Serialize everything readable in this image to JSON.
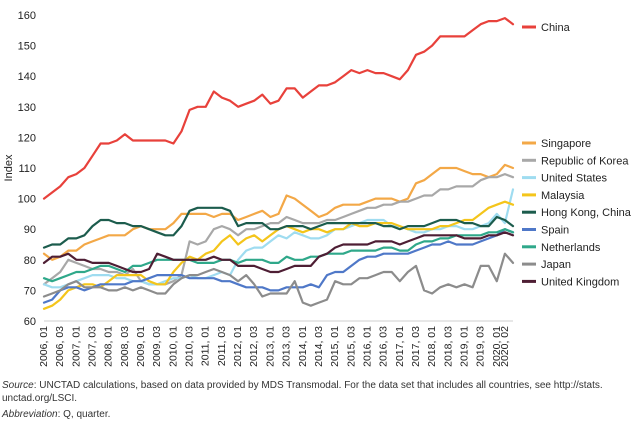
{
  "chart_data": {
    "type": "line",
    "ylabel": "Index",
    "ylim": [
      60,
      160
    ],
    "yticks": [
      60,
      70,
      80,
      90,
      100,
      110,
      120,
      130,
      140,
      150,
      160
    ],
    "grid": false,
    "legend_position": "right",
    "x": [
      "2006, Q1",
      "2006, Q2",
      "2006, Q3",
      "2006, Q4",
      "2007, Q1",
      "2007, Q2",
      "2007, Q3",
      "2007, Q4",
      "2008, Q1",
      "2008, Q2",
      "2008, Q3",
      "2008, Q4",
      "2009, Q1",
      "2009, Q2",
      "2009, Q3",
      "2009, Q4",
      "2010, Q1",
      "2010, Q2",
      "2010, Q3",
      "2010, Q4",
      "2011, Q1",
      "2011, Q2",
      "2011, Q3",
      "2011, Q4",
      "2012, Q1",
      "2012, Q2",
      "2012, Q3",
      "2012, Q4",
      "2013, Q1",
      "2013, Q2",
      "2013, Q3",
      "2013, Q4",
      "2014, Q1",
      "2014, Q2",
      "2014, Q3",
      "2014, Q4",
      "2015, Q1",
      "2015, Q2",
      "2015, Q3",
      "2015, Q4",
      "2016, Q1",
      "2016, Q2",
      "2016, Q3",
      "2016, Q4",
      "2017, Q1",
      "2017, Q2",
      "2017, Q3",
      "2017, Q4",
      "2018, Q1",
      "2018, Q2",
      "2018, Q3",
      "2018, Q4",
      "2019, Q1",
      "2019, Q2",
      "2019, Q3",
      "2019, Q4",
      "2020, Q1",
      "2020, Q2",
      "2020, Q3"
    ],
    "xtick_labels": [
      "2006, Q1",
      "2006, Q3",
      "2007, Q1",
      "2007, Q3",
      "2008, Q1",
      "2008, Q3",
      "2009, Q1",
      "2009, Q3",
      "2010, Q1",
      "2010, Q3",
      "2011, Q1",
      "2011, Q3",
      "2012, Q1",
      "2012, Q3",
      "2013, Q1",
      "2013, Q3",
      "2014, Q1",
      "2014, Q3",
      "2015, Q1",
      "2015, Q3",
      "2016, Q1",
      "2016, Q3",
      "2017, Q1",
      "2017, Q3",
      "2018, Q1",
      "2018, Q3",
      "2019, Q1",
      "2019, Q3",
      "2020, Q1",
      "2020, Q2"
    ],
    "series": [
      {
        "name": "China",
        "color": "#e8413b",
        "values": [
          100,
          102,
          104,
          107,
          108,
          110,
          114,
          118,
          118,
          119,
          121,
          119,
          119,
          119,
          119,
          119,
          118,
          122,
          129,
          130,
          130,
          135,
          133,
          132,
          130,
          131,
          132,
          134,
          131,
          132,
          136,
          136,
          133,
          135,
          137,
          137,
          138,
          140,
          142,
          141,
          142,
          141,
          141,
          140,
          139,
          142,
          147,
          148,
          150,
          153,
          153,
          153,
          153,
          155,
          157,
          158,
          158,
          159,
          157
        ]
      },
      {
        "name": "Singapore",
        "color": "#f3a847",
        "values": [
          82,
          80,
          81,
          83,
          83,
          85,
          86,
          87,
          88,
          88,
          88,
          90,
          91,
          90,
          90,
          90,
          92,
          95,
          95,
          95,
          95,
          94,
          95,
          95,
          93,
          94,
          95,
          96,
          94,
          95,
          101,
          100,
          98,
          96,
          94,
          95,
          97,
          98,
          98,
          98,
          99,
          100,
          100,
          100,
          99,
          100,
          105,
          106,
          108,
          110,
          110,
          110,
          109,
          108,
          108,
          107,
          108,
          111,
          110
        ]
      },
      {
        "name": "Republic of Korea",
        "color": "#a8a8a8",
        "values": [
          72,
          74,
          76,
          80,
          79,
          78,
          77,
          77,
          76,
          76,
          75,
          77,
          73,
          72,
          72,
          72,
          73,
          75,
          86,
          85,
          86,
          90,
          91,
          90,
          88,
          90,
          90,
          91,
          92,
          92,
          94,
          93,
          92,
          92,
          92,
          93,
          93,
          94,
          95,
          96,
          97,
          97,
          98,
          98,
          99,
          99,
          100,
          101,
          101,
          103,
          103,
          104,
          104,
          104,
          106,
          107,
          107,
          108,
          107
        ]
      },
      {
        "name": "United States",
        "color": "#9fdcf0",
        "values": [
          72,
          71,
          71,
          72,
          73,
          74,
          75,
          75,
          75,
          74,
          74,
          73,
          73,
          72,
          72,
          73,
          74,
          74,
          75,
          74,
          74,
          75,
          76,
          75,
          80,
          83,
          84,
          84,
          86,
          88,
          87,
          89,
          88,
          87,
          87,
          88,
          90,
          90,
          91,
          92,
          93,
          93,
          93,
          91,
          91,
          90,
          89,
          89,
          90,
          90,
          91,
          91,
          90,
          90,
          91,
          92,
          95,
          92,
          103
        ]
      },
      {
        "name": "Malaysia",
        "color": "#f4c51b",
        "values": [
          64,
          65,
          67,
          70,
          71,
          72,
          72,
          71,
          73,
          75,
          75,
          75,
          75,
          73,
          72,
          72,
          76,
          79,
          81,
          80,
          82,
          83,
          86,
          88,
          85,
          87,
          88,
          86,
          88,
          90,
          91,
          90,
          89,
          90,
          90,
          89,
          90,
          90,
          92,
          91,
          91,
          92,
          92,
          92,
          91,
          90,
          90,
          90,
          90,
          91,
          91,
          92,
          93,
          93,
          95,
          97,
          98,
          99,
          98
        ]
      },
      {
        "name": "Hong Kong, China",
        "color": "#1c5c4d",
        "values": [
          84,
          85,
          85,
          87,
          87,
          88,
          91,
          93,
          93,
          92,
          92,
          91,
          91,
          90,
          89,
          88,
          88,
          91,
          96,
          97,
          97,
          97,
          97,
          96,
          91,
          92,
          92,
          92,
          90,
          90,
          91,
          91,
          91,
          90,
          91,
          92,
          92,
          92,
          92,
          92,
          92,
          92,
          91,
          91,
          90,
          91,
          91,
          91,
          92,
          93,
          93,
          93,
          92,
          92,
          91,
          91,
          94,
          93,
          91
        ]
      },
      {
        "name": "Spain",
        "color": "#4f78c8",
        "values": [
          66,
          67,
          70,
          71,
          71,
          70,
          71,
          72,
          72,
          72,
          72,
          73,
          73,
          74,
          75,
          75,
          75,
          75,
          74,
          74,
          74,
          74,
          73,
          73,
          72,
          71,
          71,
          71,
          70,
          70,
          71,
          71,
          71,
          72,
          71,
          75,
          76,
          76,
          78,
          80,
          81,
          81,
          82,
          82,
          82,
          82,
          83,
          84,
          85,
          85,
          86,
          85,
          85,
          85,
          86,
          87,
          88,
          90,
          89
        ]
      },
      {
        "name": "Netherlands",
        "color": "#2fa88a",
        "values": [
          74,
          73,
          74,
          75,
          76,
          76,
          77,
          78,
          78,
          77,
          76,
          78,
          78,
          79,
          80,
          80,
          80,
          80,
          80,
          79,
          79,
          79,
          80,
          80,
          79,
          80,
          80,
          80,
          79,
          79,
          81,
          80,
          80,
          81,
          81,
          82,
          82,
          82,
          83,
          83,
          83,
          83,
          84,
          84,
          83,
          83,
          85,
          86,
          86,
          87,
          87,
          88,
          88,
          88,
          88,
          89,
          89,
          90,
          89
        ]
      },
      {
        "name": "Japan",
        "color": "#8c8c8c",
        "values": [
          68,
          69,
          70,
          72,
          73,
          71,
          71,
          71,
          70,
          70,
          71,
          70,
          71,
          70,
          69,
          69,
          72,
          74,
          75,
          75,
          76,
          77,
          76,
          75,
          73,
          75,
          72,
          68,
          69,
          69,
          69,
          73,
          66,
          65,
          66,
          67,
          73,
          72,
          72,
          74,
          74,
          75,
          76,
          76,
          73,
          76,
          78,
          70,
          69,
          71,
          72,
          71,
          72,
          71,
          78,
          78,
          73,
          82,
          79
        ]
      },
      {
        "name": "United Kingdom",
        "color": "#4e1e34",
        "values": [
          79,
          81,
          81,
          82,
          80,
          80,
          79,
          79,
          79,
          78,
          77,
          76,
          76,
          77,
          82,
          81,
          80,
          80,
          80,
          80,
          80,
          81,
          80,
          80,
          78,
          78,
          78,
          77,
          76,
          76,
          77,
          78,
          78,
          78,
          81,
          82,
          84,
          85,
          85,
          85,
          85,
          86,
          86,
          86,
          85,
          86,
          87,
          88,
          88,
          88,
          88,
          88,
          87,
          87,
          87,
          88,
          88,
          89,
          88
        ]
      }
    ]
  },
  "footnote": {
    "source_label": "Source",
    "source_text": ": UNCTAD calculations, based on data provided by MDS Transmodal. For the data set that includes all countries, see http://stats. unctad.org/LSCI.",
    "abbrev_label": "Abbreviation",
    "abbrev_text": ": Q, quarter."
  }
}
